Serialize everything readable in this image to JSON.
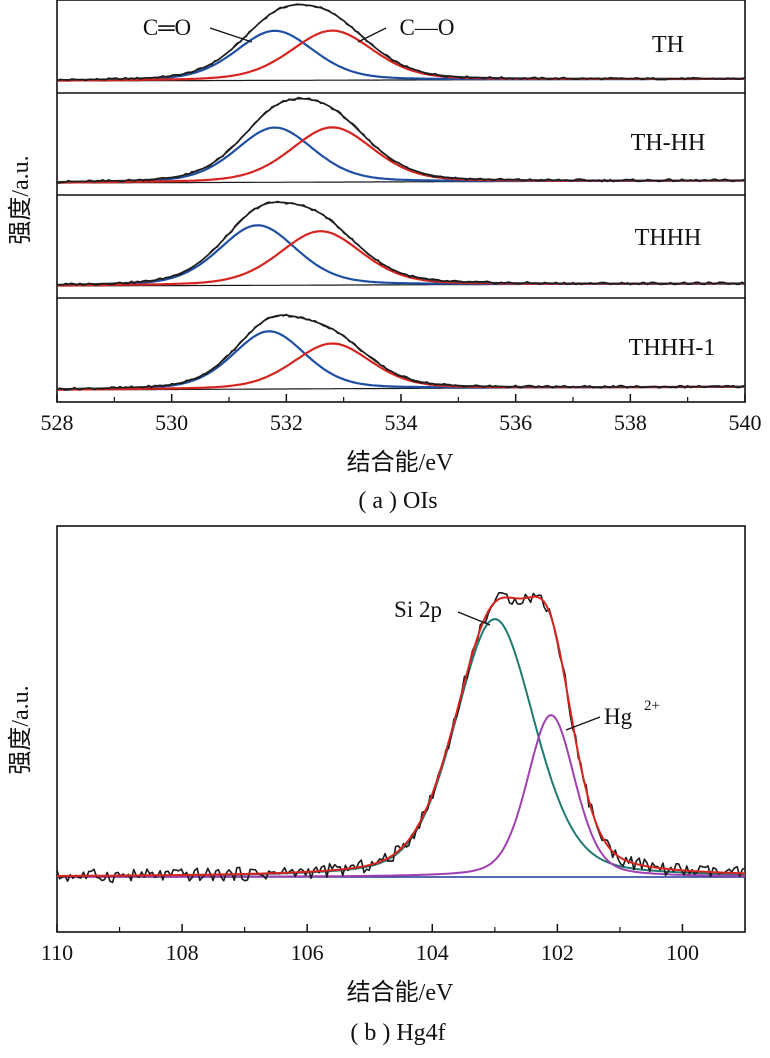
{
  "chart_data": [
    {
      "type": "line",
      "caption": "( a ) OIs",
      "xlabel": "结合能/eV",
      "ylabel": "强度/a.u.",
      "xlim": [
        528,
        540
      ],
      "x_ticks": [
        "528",
        "530",
        "532",
        "534",
        "536",
        "538",
        "540"
      ],
      "grid": false,
      "annotations": {
        "c_double_o": "C═O",
        "c_single_o": "C—O"
      },
      "colors": {
        "raw": "#1a1a1a",
        "envelope": "#333333",
        "c_double_o": "#1f4fa3",
        "c_single_o": "#d62520",
        "baseline": "#1a1a1a"
      },
      "subplots": [
        {
          "label": "TH",
          "c_double_o": {
            "center": 531.8,
            "height": 0.74,
            "fwhm": 1.6
          },
          "c_single_o": {
            "center": 532.8,
            "height": 0.74,
            "fwhm": 1.7
          },
          "baseline": [
            0.0,
            0.03
          ]
        },
        {
          "label": "TH-HH",
          "c_double_o": {
            "center": 531.8,
            "height": 0.72,
            "fwhm": 1.6
          },
          "c_single_o": {
            "center": 532.8,
            "height": 0.72,
            "fwhm": 1.7
          },
          "baseline": [
            0.0,
            0.03
          ]
        },
        {
          "label": "THHH",
          "c_double_o": {
            "center": 531.5,
            "height": 0.78,
            "fwhm": 1.6
          },
          "c_single_o": {
            "center": 532.6,
            "height": 0.7,
            "fwhm": 1.7
          },
          "baseline": [
            0.0,
            0.03
          ]
        },
        {
          "label": "THHH-1",
          "c_double_o": {
            "center": 531.7,
            "height": 0.74,
            "fwhm": 1.5
          },
          "c_single_o": {
            "center": 532.8,
            "height": 0.58,
            "fwhm": 1.6
          },
          "baseline": [
            0.0,
            0.04
          ]
        }
      ]
    },
    {
      "type": "line",
      "caption": "( b ) Hg4f",
      "xlabel": "结合能/eV",
      "ylabel": "强度/a.u.",
      "xlim": [
        110,
        99
      ],
      "x_ticks": [
        "110",
        "108",
        "106",
        "104",
        "102",
        "100"
      ],
      "grid": false,
      "annotations": {
        "si": "Si 2p",
        "hg": "Hg",
        "hg_sup": "2+"
      },
      "colors": {
        "raw": "#1a1a1a",
        "envelope": "#d62520",
        "si": "#1f7a72",
        "hg": "#a040b0",
        "baseline": "#1f3a9a"
      },
      "peaks": {
        "si": {
          "center": 103.0,
          "height": 0.86,
          "fwhm": 1.5
        },
        "hg": {
          "center": 102.1,
          "height": 0.54,
          "fwhm": 0.9
        }
      }
    }
  ]
}
